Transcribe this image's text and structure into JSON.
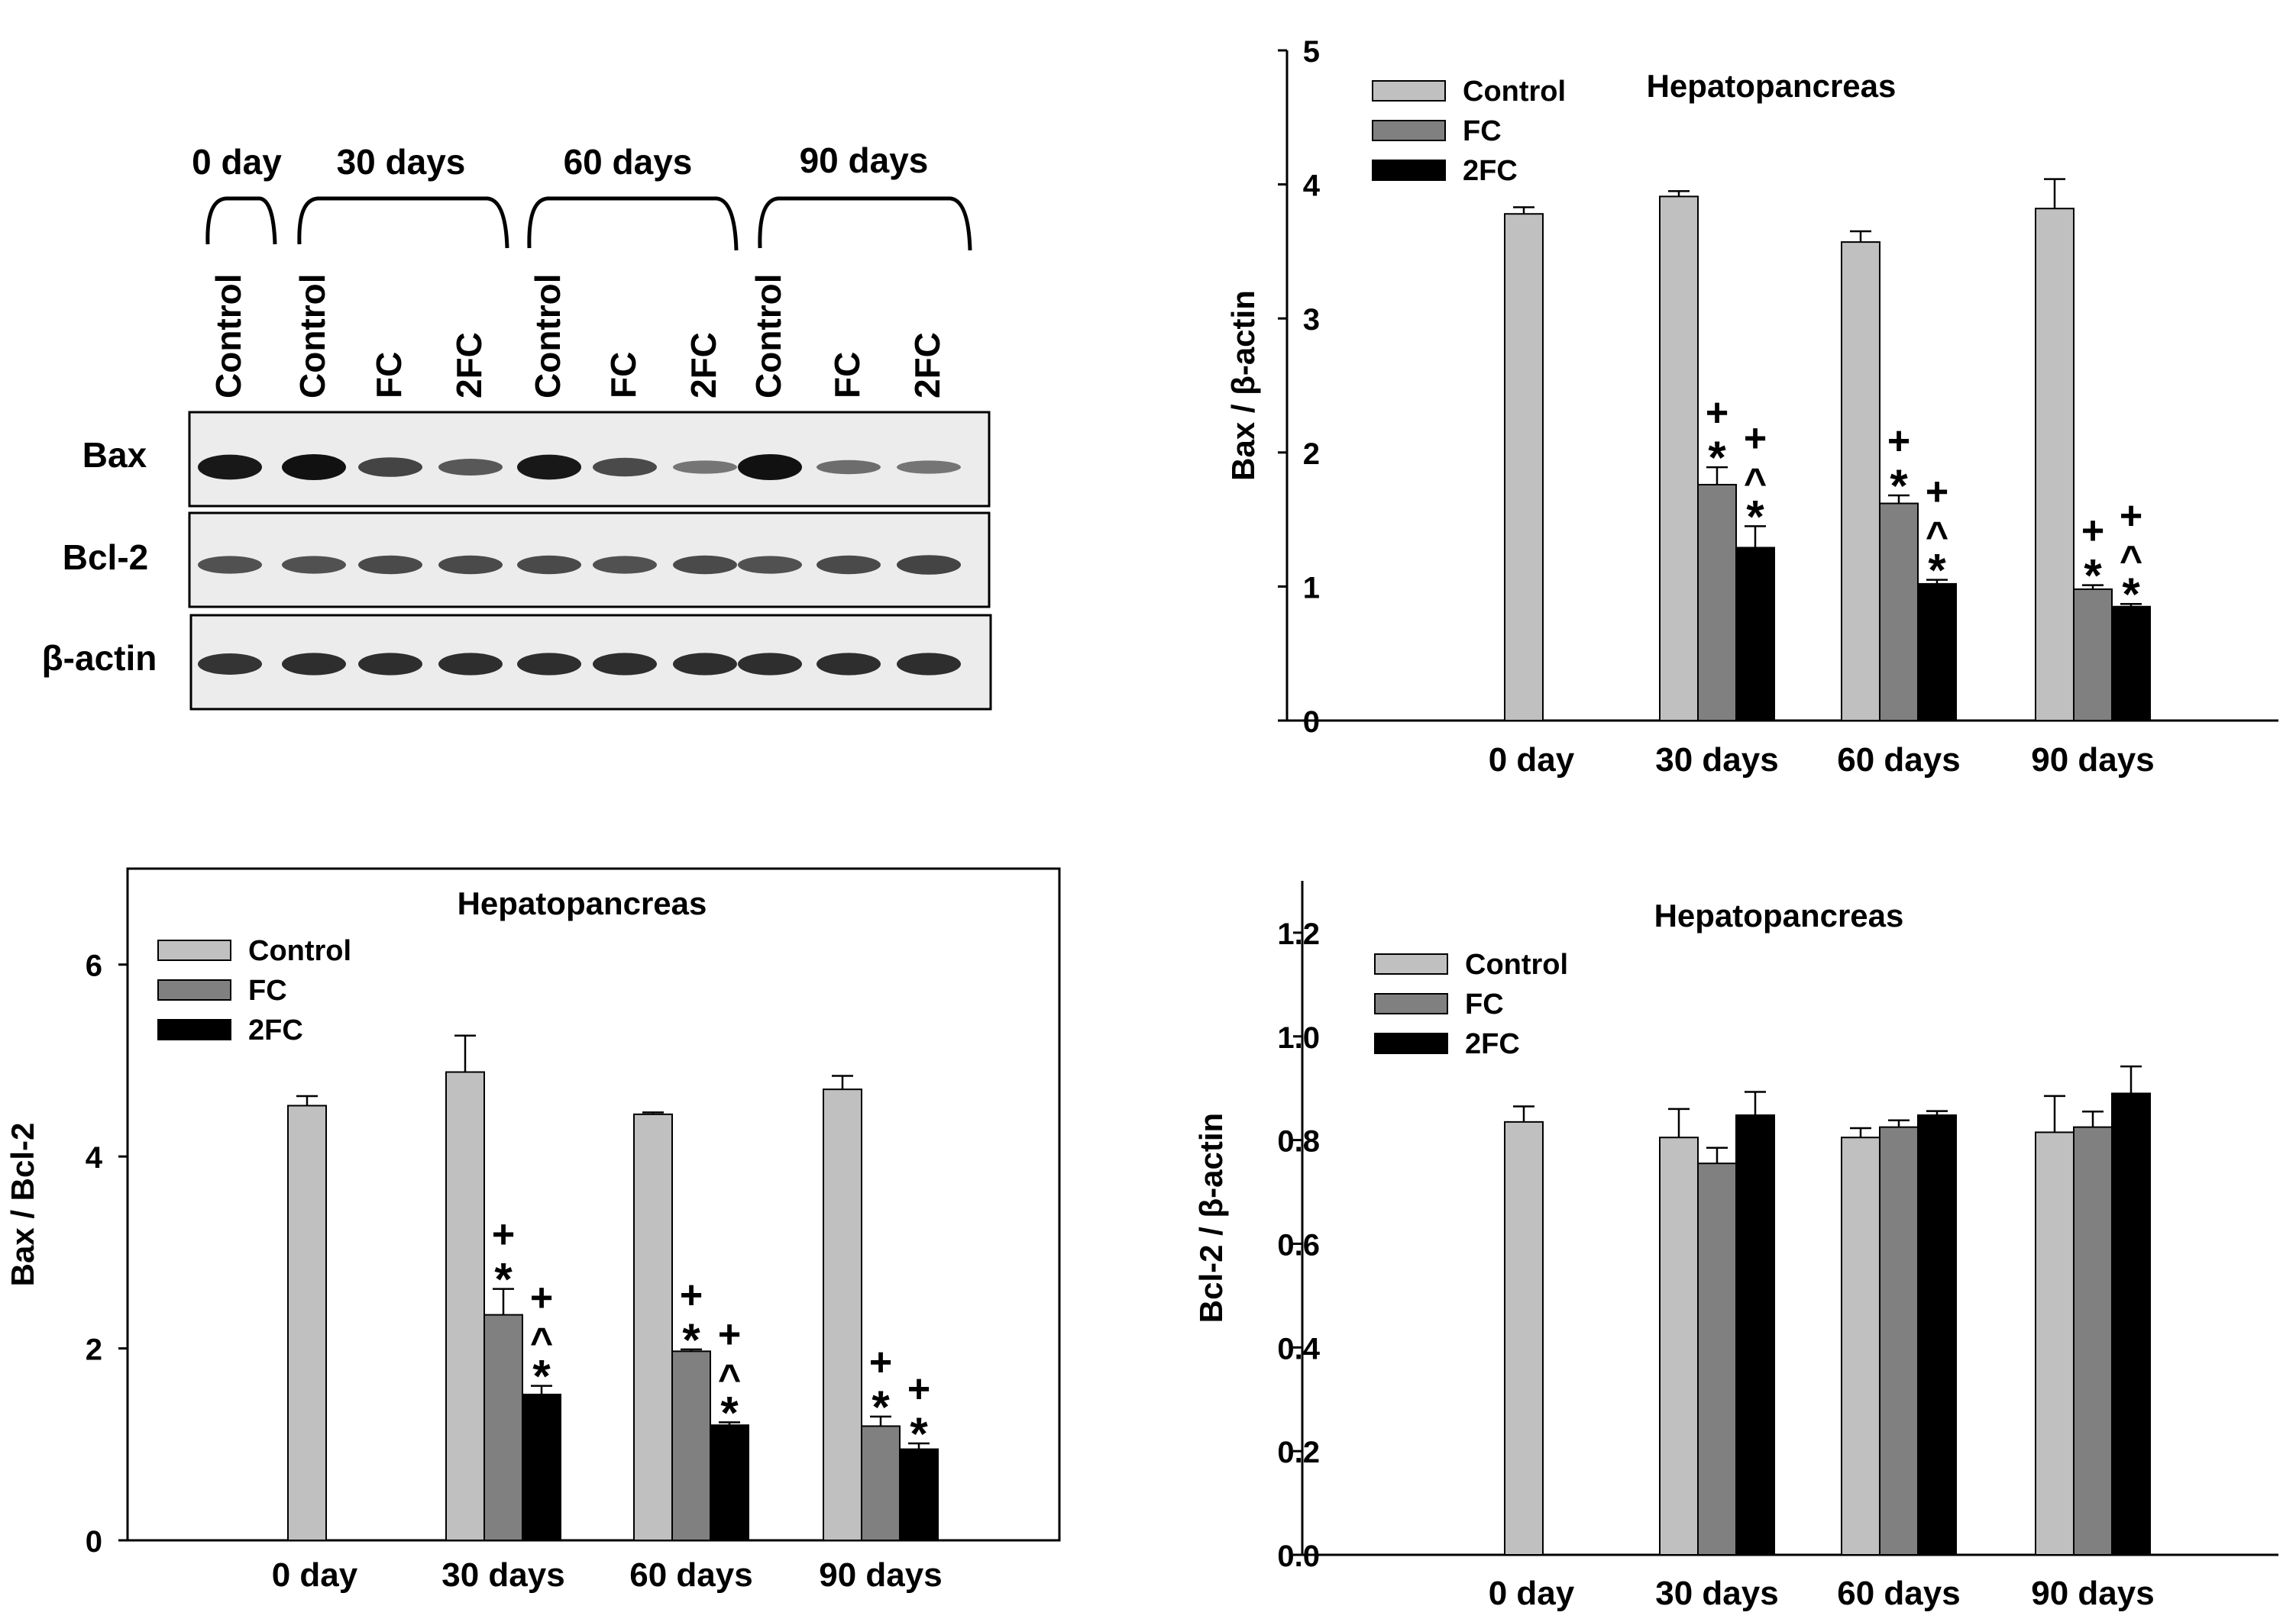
{
  "blot": {
    "groups": [
      "0 day",
      "30 days",
      "60 days",
      "90 days"
    ],
    "lanes": [
      "Control",
      "Control",
      "FC",
      "2FC",
      "Control",
      "FC",
      "2FC",
      "Control",
      "FC",
      "2FC"
    ],
    "rows": [
      {
        "label": "Bax",
        "intensity": [
          0.95,
          1.0,
          0.65,
          0.5,
          0.95,
          0.6,
          0.3,
          1.0,
          0.35,
          0.3
        ]
      },
      {
        "label": "Bcl-2",
        "intensity": [
          0.55,
          0.55,
          0.6,
          0.6,
          0.6,
          0.55,
          0.6,
          0.55,
          0.6,
          0.65
        ]
      },
      {
        "label": "β-actin",
        "intensity": [
          0.75,
          0.8,
          0.8,
          0.8,
          0.8,
          0.8,
          0.8,
          0.8,
          0.8,
          0.8
        ]
      }
    ]
  },
  "colors": {
    "Control": "#c0c0c0",
    "FC": "#808080",
    "2FC": "#000000"
  },
  "chart_data": [
    {
      "id": "bax-actin",
      "type": "bar",
      "title": "Hepatopancreas",
      "xlabel": "",
      "ylabel": "Bax / β-actin",
      "categories": [
        "0 day",
        "30 days",
        "60 days",
        "90 days"
      ],
      "ylim": [
        0,
        5
      ],
      "yticks": [
        0,
        1,
        2,
        3,
        4,
        5
      ],
      "tick_decimals": 0,
      "legend_position": "top-left",
      "series": [
        {
          "name": "Control",
          "values": [
            3.78,
            3.91,
            3.57,
            3.82
          ],
          "errors": [
            0.05,
            0.04,
            0.08,
            0.22
          ]
        },
        {
          "name": "FC",
          "values": [
            null,
            1.76,
            1.62,
            0.98
          ],
          "errors": [
            null,
            0.13,
            0.06,
            0.03
          ]
        },
        {
          "name": "2FC",
          "values": [
            null,
            1.29,
            1.02,
            0.85
          ],
          "errors": [
            null,
            0.16,
            0.03,
            0.02
          ]
        }
      ],
      "annotations": [
        {
          "category": 1,
          "series": 1,
          "lines": [
            "+",
            "*"
          ]
        },
        {
          "category": 1,
          "series": 2,
          "lines": [
            "+",
            "^",
            "*"
          ]
        },
        {
          "category": 2,
          "series": 1,
          "lines": [
            "+",
            "*"
          ]
        },
        {
          "category": 2,
          "series": 2,
          "lines": [
            "+",
            "^",
            "*"
          ]
        },
        {
          "category": 3,
          "series": 1,
          "lines": [
            "+",
            "*"
          ]
        },
        {
          "category": 3,
          "series": 2,
          "lines": [
            "+",
            "^",
            "*"
          ]
        }
      ]
    },
    {
      "id": "bax-bcl2",
      "type": "bar",
      "title": "Hepatopancreas",
      "xlabel": "",
      "ylabel": "Bax / Bcl-2",
      "categories": [
        "0 day",
        "30 days",
        "60 days",
        "90 days"
      ],
      "ylim": [
        0,
        7
      ],
      "yticks": [
        0,
        2,
        4,
        6
      ],
      "tick_decimals": 0,
      "legend_position": "top-left",
      "series": [
        {
          "name": "Control",
          "values": [
            4.53,
            4.88,
            4.44,
            4.7
          ],
          "errors": [
            0.1,
            0.38,
            0.02,
            0.14
          ]
        },
        {
          "name": "FC",
          "values": [
            null,
            2.35,
            1.97,
            1.19
          ],
          "errors": [
            null,
            0.27,
            0.02,
            0.1
          ]
        },
        {
          "name": "2FC",
          "values": [
            null,
            1.52,
            1.2,
            0.95
          ],
          "errors": [
            null,
            0.09,
            0.03,
            0.06
          ]
        }
      ],
      "annotations": [
        {
          "category": 1,
          "series": 1,
          "lines": [
            "+",
            "*"
          ]
        },
        {
          "category": 1,
          "series": 2,
          "lines": [
            "+",
            "^",
            "*"
          ]
        },
        {
          "category": 2,
          "series": 1,
          "lines": [
            "+",
            "*"
          ]
        },
        {
          "category": 2,
          "series": 2,
          "lines": [
            "+",
            "^",
            "*"
          ]
        },
        {
          "category": 3,
          "series": 1,
          "lines": [
            "+",
            "*"
          ]
        },
        {
          "category": 3,
          "series": 2,
          "lines": [
            "+",
            "*"
          ]
        }
      ]
    },
    {
      "id": "bcl2-actin",
      "type": "bar",
      "title": "Hepatopancreas",
      "xlabel": "",
      "ylabel": "Bcl-2 / β-actin",
      "categories": [
        "0 day",
        "30 days",
        "60 days",
        "90 days"
      ],
      "ylim": [
        0,
        1.3
      ],
      "yticks": [
        0,
        0.2,
        0.4,
        0.6,
        0.8,
        1.0,
        1.2
      ],
      "tick_decimals": 1,
      "legend_position": "top-left",
      "series": [
        {
          "name": "Control",
          "values": [
            0.835,
            0.805,
            0.805,
            0.815
          ],
          "errors": [
            0.03,
            0.055,
            0.018,
            0.07
          ]
        },
        {
          "name": "FC",
          "values": [
            null,
            0.755,
            0.825,
            0.825
          ],
          "errors": [
            null,
            0.03,
            0.013,
            0.03
          ]
        },
        {
          "name": "2FC",
          "values": [
            null,
            0.848,
            0.848,
            0.89
          ],
          "errors": [
            null,
            0.045,
            0.008,
            0.052
          ]
        }
      ],
      "annotations": []
    }
  ]
}
